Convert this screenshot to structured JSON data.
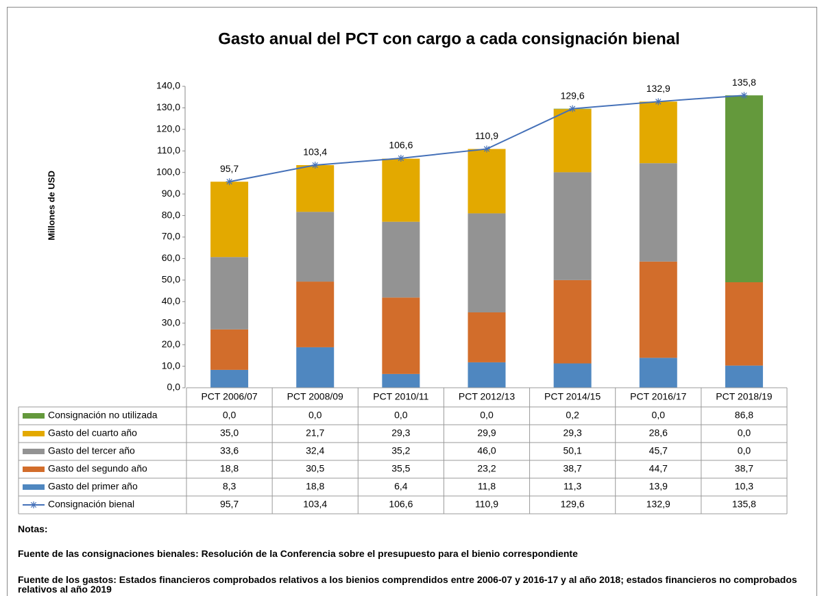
{
  "chart_data": {
    "type": "bar",
    "stacked": true,
    "title": "Gasto anual del PCT con cargo a cada consignación bienal",
    "y_label": "Millones de USD",
    "categories": [
      "PCT 2006/07",
      "PCT 2008/09",
      "PCT 2010/11",
      "PCT 2012/13",
      "PCT 2014/15",
      "PCT 2016/17",
      "PCT 2018/19"
    ],
    "ylim": [
      0,
      140
    ],
    "yticks": [
      {
        "value": 0,
        "label": "0,0"
      },
      {
        "value": 10,
        "label": "10,0"
      },
      {
        "value": 20,
        "label": "20,0"
      },
      {
        "value": 30,
        "label": "30,0"
      },
      {
        "value": 40,
        "label": "40,0"
      },
      {
        "value": 50,
        "label": "50,0"
      },
      {
        "value": 60,
        "label": "60,0"
      },
      {
        "value": 70,
        "label": "70,0"
      },
      {
        "value": 80,
        "label": "80,0"
      },
      {
        "value": 90,
        "label": "90,0"
      },
      {
        "value": 100,
        "label": "100,0"
      },
      {
        "value": 110,
        "label": "110,0"
      },
      {
        "value": 120,
        "label": "120,0"
      },
      {
        "value": 130,
        "label": "130,0"
      },
      {
        "value": 140,
        "label": "140,0"
      }
    ],
    "grid": false,
    "series": [
      {
        "name": "Consignación no utilizada",
        "color": "#64993c",
        "values": [
          0.0,
          0.0,
          0.0,
          0.0,
          0.2,
          0.0,
          86.8
        ],
        "value_labels": [
          "0,0",
          "0,0",
          "0,0",
          "0,0",
          "0,2",
          "0,0",
          "86,8"
        ]
      },
      {
        "name": "Gasto del cuarto año",
        "color": "#e3a900",
        "values": [
          35.0,
          21.7,
          29.3,
          29.9,
          29.3,
          28.6,
          0.0
        ],
        "value_labels": [
          "35,0",
          "21,7",
          "29,3",
          "29,9",
          "29,3",
          "28,6",
          "0,0"
        ]
      },
      {
        "name": "Gasto del tercer año",
        "color": "#939393",
        "values": [
          33.6,
          32.4,
          35.2,
          46.0,
          50.1,
          45.7,
          0.0
        ],
        "value_labels": [
          "33,6",
          "32,4",
          "35,2",
          "46,0",
          "50,1",
          "45,7",
          "0,0"
        ]
      },
      {
        "name": "Gasto del segundo año",
        "color": "#d26d2b",
        "values": [
          18.8,
          30.5,
          35.5,
          23.2,
          38.7,
          44.7,
          38.7
        ],
        "value_labels": [
          "18,8",
          "30,5",
          "35,5",
          "23,2",
          "38,7",
          "44,7",
          "38,7"
        ]
      },
      {
        "name": "Gasto del primer año",
        "color": "#4f87c0",
        "values": [
          8.3,
          18.8,
          6.4,
          11.8,
          11.3,
          13.9,
          10.3
        ],
        "value_labels": [
          "8,3",
          "18,8",
          "6,4",
          "11,8",
          "11,3",
          "13,9",
          "10,3"
        ]
      },
      {
        "name": "Consignación bienal",
        "type": "line",
        "color": "#4470b8",
        "values": [
          95.7,
          103.4,
          106.6,
          110.9,
          129.6,
          132.9,
          135.8
        ],
        "value_labels": [
          "95,7",
          "103,4",
          "106,6",
          "110,9",
          "129,6",
          "132,9",
          "135,8"
        ]
      }
    ]
  },
  "notes": {
    "heading": "Notas:",
    "lines": [
      "Fuente de las consignaciones bienales: Resolución de la Conferencia sobre el presupuesto para el bienio correspondiente",
      "Fuente de los gastos: Estados financieros comprobados relativos a los bienios comprendidos entre 2006-07 y 2016-17 y al año 2018; estados financieros no comprobados relativos al año 2019"
    ]
  }
}
